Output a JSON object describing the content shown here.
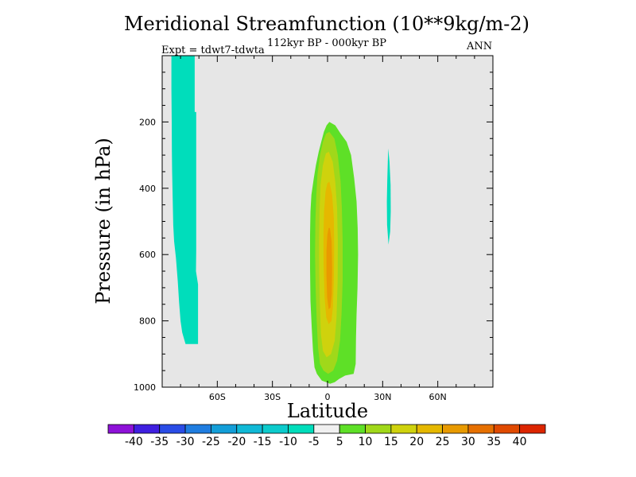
{
  "chart_data": {
    "type": "contour",
    "title": "Meridional Streamfunction (10**9kg/m-2)",
    "subtitle": "112kyr BP - 000kyr BP",
    "experiment": "Expt = tdwt7-tdwta",
    "season": "ANN",
    "xlabel": "Latitude",
    "ylabel": "Pressure (in hPa)",
    "xlim": [
      -90,
      90
    ],
    "ylim": [
      1000,
      0
    ],
    "x_ticks": [
      {
        "value": -60,
        "label": "60S"
      },
      {
        "value": -30,
        "label": "30S"
      },
      {
        "value": 0,
        "label": "0"
      },
      {
        "value": 30,
        "label": "30N"
      },
      {
        "value": 60,
        "label": "60N"
      }
    ],
    "y_ticks": [
      {
        "value": 200,
        "label": "200"
      },
      {
        "value": 400,
        "label": "400"
      },
      {
        "value": 600,
        "label": "600"
      },
      {
        "value": 800,
        "label": "800"
      },
      {
        "value": 1000,
        "label": "1000"
      }
    ],
    "background_color": "#e6e6e6",
    "colorbar": {
      "labels": [
        "-40",
        "-35",
        "-30",
        "-25",
        "-20",
        "-15",
        "-10",
        "-5",
        "5",
        "10",
        "15",
        "20",
        "25",
        "30",
        "35",
        "40"
      ],
      "colors": [
        "#8e12d8",
        "#3f1fe0",
        "#2a4ce6",
        "#1f7de0",
        "#139ed8",
        "#10b9d6",
        "#0ccbcc",
        "#00ddbb",
        "#f0f0f0",
        "#5ee027",
        "#a0d81a",
        "#cfd20d",
        "#e5b800",
        "#e89a00",
        "#e67000",
        "#e04a00",
        "#dc2500"
      ]
    },
    "regions": [
      {
        "name": "southern-negative-cell",
        "level": "-10 to -5",
        "color": "#00ddbb",
        "polygon": [
          [
            -85,
            0
          ],
          [
            -72.3,
            0
          ],
          [
            -72.3,
            170
          ],
          [
            -71.5,
            170
          ],
          [
            -71.5,
            440
          ],
          [
            -71.5,
            590
          ],
          [
            -71.6,
            650
          ],
          [
            -70.5,
            690
          ],
          [
            -70.5,
            870
          ],
          [
            -77.3,
            870
          ],
          [
            -77.8,
            860
          ],
          [
            -79.1,
            835
          ],
          [
            -80,
            800
          ],
          [
            -80.8,
            745
          ],
          [
            -81.5,
            680
          ],
          [
            -82.5,
            610
          ],
          [
            -83.5,
            560
          ],
          [
            -84,
            510
          ],
          [
            -84.3,
            430
          ],
          [
            -84.6,
            350
          ],
          [
            -84.7,
            290
          ],
          [
            -84.8,
            200
          ],
          [
            -85,
            100
          ]
        ]
      },
      {
        "name": "tropical-cell-5-10",
        "level": "5 to 10",
        "color": "#5ee027",
        "polygon": [
          [
            1,
            200
          ],
          [
            4.2,
            210
          ],
          [
            7.1,
            235
          ],
          [
            10.4,
            260
          ],
          [
            12.8,
            300
          ],
          [
            14.5,
            370
          ],
          [
            15.8,
            440
          ],
          [
            16.4,
            520
          ],
          [
            16.6,
            600
          ],
          [
            16.3,
            700
          ],
          [
            15.8,
            780
          ],
          [
            15.5,
            850
          ],
          [
            15.3,
            930
          ],
          [
            14.2,
            960
          ],
          [
            9.6,
            965
          ],
          [
            6.3,
            975
          ],
          [
            3.9,
            985
          ],
          [
            1.4,
            990
          ],
          [
            -0.8,
            985
          ],
          [
            -3.1,
            980
          ],
          [
            -5.8,
            960
          ],
          [
            -7.1,
            940
          ],
          [
            -7.9,
            890
          ],
          [
            -8.6,
            820
          ],
          [
            -9.3,
            740
          ],
          [
            -9.5,
            640
          ],
          [
            -9.5,
            540
          ],
          [
            -9.3,
            470
          ],
          [
            -8.8,
            420
          ],
          [
            -7.5,
            370
          ],
          [
            -6.3,
            330
          ],
          [
            -4.8,
            290
          ],
          [
            -3.4,
            260
          ],
          [
            -2,
            230
          ],
          [
            -0.5,
            210
          ]
        ]
      },
      {
        "name": "tropical-cell-10-15",
        "level": "10 to 15",
        "color": "#a0d81a",
        "polygon": [
          [
            1,
            230
          ],
          [
            3.7,
            250
          ],
          [
            5.6,
            300
          ],
          [
            7.1,
            380
          ],
          [
            7.8,
            460
          ],
          [
            8.2,
            560
          ],
          [
            8.2,
            680
          ],
          [
            7.6,
            780
          ],
          [
            6.8,
            860
          ],
          [
            5.2,
            920
          ],
          [
            3.1,
            950
          ],
          [
            0.3,
            960
          ],
          [
            -2.2,
            950
          ],
          [
            -4.1,
            930
          ],
          [
            -5.2,
            880
          ],
          [
            -5.9,
            800
          ],
          [
            -6.5,
            700
          ],
          [
            -6.8,
            600
          ],
          [
            -6.6,
            500
          ],
          [
            -6.1,
            420
          ],
          [
            -5.5,
            360
          ],
          [
            -4.1,
            300
          ],
          [
            -2.5,
            260
          ],
          [
            -0.8,
            235
          ]
        ]
      },
      {
        "name": "tropical-cell-15-20",
        "level": "15 to 20",
        "color": "#cfd20d",
        "polygon": [
          [
            0.7,
            290
          ],
          [
            2.8,
            320
          ],
          [
            4.2,
            380
          ],
          [
            5.2,
            460
          ],
          [
            5.6,
            560
          ],
          [
            5.5,
            680
          ],
          [
            4.9,
            790
          ],
          [
            3.9,
            860
          ],
          [
            1.9,
            900
          ],
          [
            -0.5,
            910
          ],
          [
            -2.5,
            890
          ],
          [
            -3.6,
            840
          ],
          [
            -4.1,
            760
          ],
          [
            -4.5,
            660
          ],
          [
            -4.6,
            560
          ],
          [
            -4.3,
            460
          ],
          [
            -3.8,
            390
          ],
          [
            -2.5,
            330
          ],
          [
            -0.9,
            295
          ]
        ]
      },
      {
        "name": "tropical-cell-20-25",
        "level": "20 to 25",
        "color": "#e5b800",
        "polygon": [
          [
            1,
            380
          ],
          [
            2.5,
            420
          ],
          [
            3.4,
            490
          ],
          [
            3.6,
            580
          ],
          [
            3.4,
            680
          ],
          [
            2.9,
            760
          ],
          [
            2.1,
            800
          ],
          [
            0.6,
            810
          ],
          [
            -0.7,
            790
          ],
          [
            -1.6,
            730
          ],
          [
            -2.1,
            630
          ],
          [
            -2.2,
            540
          ],
          [
            -1.9,
            470
          ],
          [
            -1.1,
            410
          ],
          [
            -0.1,
            385
          ]
        ]
      },
      {
        "name": "tropical-cell-25-30",
        "level": "25 to 30",
        "color": "#e89a00",
        "polygon": [
          [
            1.3,
            520
          ],
          [
            2.2,
            560
          ],
          [
            2.5,
            640
          ],
          [
            2.3,
            720
          ],
          [
            1.6,
            760
          ],
          [
            0.6,
            765
          ],
          [
            -0.2,
            730
          ],
          [
            -0.6,
            660
          ],
          [
            -0.6,
            590
          ],
          [
            -0.1,
            540
          ],
          [
            0.6,
            520
          ]
        ]
      },
      {
        "name": "northern-negative-patch",
        "level": "-10 to -5",
        "color": "#00ddbb",
        "polygon": [
          [
            33,
            280
          ],
          [
            33.7,
            320
          ],
          [
            34.3,
            390
          ],
          [
            34.4,
            470
          ],
          [
            34.1,
            530
          ],
          [
            33.2,
            570
          ],
          [
            32.4,
            510
          ],
          [
            32.3,
            440
          ],
          [
            32.5,
            380
          ],
          [
            32.8,
            320
          ]
        ]
      }
    ]
  }
}
